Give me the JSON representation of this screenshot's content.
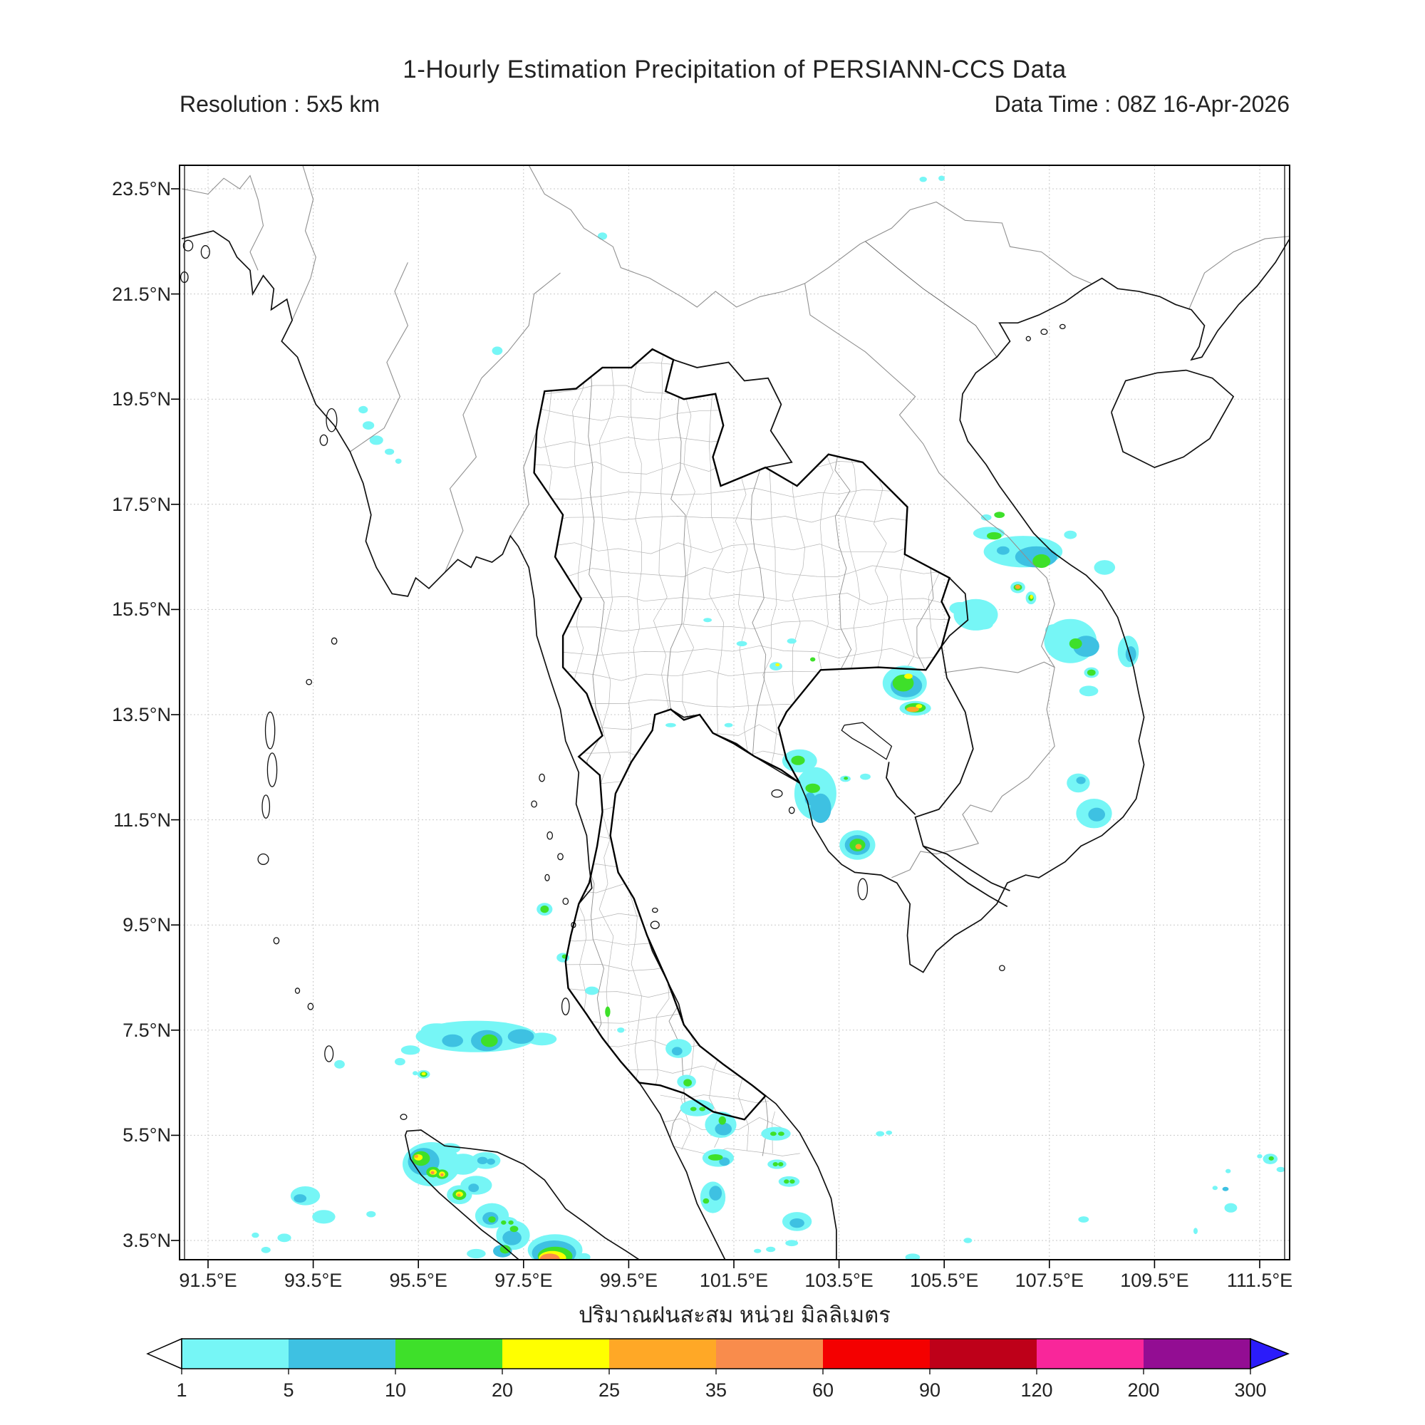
{
  "header": {
    "title": "1-Hourly Estimation Precipitation of PERSIANN-CCS Data",
    "resolution": "Resolution : 5x5 km",
    "data_time": "Data Time : 08Z 16-Apr-2026"
  },
  "caption_thai": "ปริมาณฝนสะสม หน่วย มิลลิเมตร",
  "axes": {
    "lat_labels": [
      "23.5°N",
      "21.5°N",
      "19.5°N",
      "17.5°N",
      "15.5°N",
      "13.5°N",
      "11.5°N",
      "9.5°N",
      "7.5°N",
      "5.5°N",
      "3.5°N"
    ],
    "lat_values": [
      23.5,
      21.5,
      19.5,
      17.5,
      15.5,
      13.5,
      11.5,
      9.5,
      7.5,
      5.5,
      3.5
    ],
    "lon_labels": [
      "91.5°E",
      "93.5°E",
      "95.5°E",
      "97.5°E",
      "99.5°E",
      "101.5°E",
      "103.5°E",
      "105.5°E",
      "107.5°E",
      "109.5°E",
      "111.5°E"
    ],
    "lon_values": [
      91.5,
      93.5,
      95.5,
      97.5,
      99.5,
      101.5,
      103.5,
      105.5,
      107.5,
      109.5,
      111.5
    ],
    "grid_color": "#c9c9c9"
  },
  "colorbar": {
    "tick_labels": [
      "1",
      "5",
      "10",
      "20",
      "25",
      "35",
      "60",
      "90",
      "120",
      "200",
      "300"
    ],
    "tick_values": [
      1,
      5,
      10,
      20,
      25,
      35,
      60,
      90,
      120,
      200,
      300
    ],
    "segment_colors": [
      "#76F6F6",
      "#3EC1E2",
      "#3EE02A",
      "#FFFF00",
      "#FFA826",
      "#F98C4C",
      "#F40000",
      "#BE0019",
      "#F9269A",
      "#930D93"
    ],
    "under_color": "#ffffff",
    "over_color": "#2B1CFA",
    "outline_color": "#000000"
  },
  "chart_data": {
    "type": "heatmap",
    "title": "1-Hourly Estimation Precipitation of PERSIANN-CCS Data",
    "units": "mm",
    "lon_range": [
      90.96,
      112.07
    ],
    "lat_range": [
      3.13,
      23.95
    ],
    "legend_mm_bins": [
      1,
      5,
      10,
      20,
      25,
      35,
      60,
      90,
      120,
      200,
      300
    ],
    "precip_cells": [
      [
        99.0,
        22.6,
        0.09,
        0.07,
        1
      ],
      [
        97.0,
        20.42,
        0.1,
        0.08,
        1
      ],
      [
        105.1,
        23.68,
        0.07,
        0.05,
        1
      ],
      [
        105.45,
        23.7,
        0.06,
        0.05,
        1
      ],
      [
        94.45,
        19.3,
        0.09,
        0.07,
        1
      ],
      [
        94.55,
        19.0,
        0.11,
        0.08,
        1
      ],
      [
        94.7,
        18.72,
        0.13,
        0.09,
        1
      ],
      [
        94.95,
        18.5,
        0.09,
        0.06,
        1
      ],
      [
        95.12,
        18.32,
        0.06,
        0.05,
        1
      ],
      [
        106.35,
        16.95,
        0.3,
        0.12,
        1
      ],
      [
        106.45,
        16.9,
        0.14,
        0.07,
        10
      ],
      [
        107.0,
        16.6,
        0.75,
        0.3,
        1
      ],
      [
        107.25,
        16.5,
        0.4,
        0.2,
        5
      ],
      [
        107.35,
        16.42,
        0.17,
        0.13,
        10
      ],
      [
        106.62,
        16.62,
        0.12,
        0.08,
        5
      ],
      [
        107.9,
        16.92,
        0.12,
        0.08,
        1
      ],
      [
        108.55,
        16.3,
        0.2,
        0.14,
        1
      ],
      [
        106.3,
        17.25,
        0.1,
        0.06,
        1
      ],
      [
        106.55,
        17.3,
        0.1,
        0.06,
        10
      ],
      [
        106.9,
        15.92,
        0.14,
        0.11,
        1
      ],
      [
        106.9,
        15.92,
        0.08,
        0.06,
        10
      ],
      [
        106.9,
        15.93,
        0.05,
        0.04,
        25
      ],
      [
        107.15,
        15.72,
        0.1,
        0.12,
        1
      ],
      [
        107.15,
        15.72,
        0.05,
        0.06,
        10
      ],
      [
        107.16,
        15.74,
        0.03,
        0.04,
        20
      ],
      [
        106.1,
        15.4,
        0.42,
        0.3,
        1
      ],
      [
        105.8,
        15.52,
        0.2,
        0.12,
        1
      ],
      [
        106.25,
        15.22,
        0.18,
        0.1,
        1
      ],
      [
        102.3,
        14.42,
        0.12,
        0.08,
        1
      ],
      [
        102.33,
        14.45,
        0.04,
        0.03,
        20
      ],
      [
        101.65,
        14.85,
        0.1,
        0.05,
        1
      ],
      [
        102.6,
        14.9,
        0.09,
        0.05,
        1
      ],
      [
        103.0,
        14.55,
        0.05,
        0.04,
        10
      ],
      [
        101.0,
        15.3,
        0.08,
        0.04,
        1
      ],
      [
        100.3,
        13.3,
        0.1,
        0.04,
        1
      ],
      [
        101.4,
        13.3,
        0.08,
        0.04,
        1
      ],
      [
        104.75,
        14.1,
        0.42,
        0.33,
        1
      ],
      [
        104.78,
        14.05,
        0.3,
        0.22,
        5
      ],
      [
        104.72,
        14.1,
        0.2,
        0.16,
        10
      ],
      [
        104.82,
        14.23,
        0.08,
        0.05,
        20
      ],
      [
        104.95,
        13.62,
        0.3,
        0.14,
        1
      ],
      [
        104.95,
        13.63,
        0.2,
        0.09,
        10
      ],
      [
        104.9,
        13.6,
        0.12,
        0.05,
        25
      ],
      [
        105.02,
        13.66,
        0.06,
        0.04,
        20
      ],
      [
        107.9,
        14.9,
        0.5,
        0.42,
        1
      ],
      [
        108.2,
        14.8,
        0.25,
        0.2,
        5
      ],
      [
        108.0,
        14.85,
        0.12,
        0.1,
        10
      ],
      [
        107.6,
        15.1,
        0.18,
        0.12,
        1
      ],
      [
        108.3,
        14.3,
        0.14,
        0.1,
        1
      ],
      [
        108.3,
        14.3,
        0.08,
        0.06,
        10
      ],
      [
        108.25,
        13.95,
        0.18,
        0.1,
        1
      ],
      [
        109.0,
        14.7,
        0.2,
        0.3,
        1
      ],
      [
        109.05,
        14.65,
        0.1,
        0.15,
        5
      ],
      [
        102.75,
        12.62,
        0.33,
        0.22,
        1
      ],
      [
        102.72,
        12.63,
        0.13,
        0.09,
        10
      ],
      [
        103.05,
        12.0,
        0.4,
        0.5,
        1
      ],
      [
        103.0,
        12.1,
        0.14,
        0.09,
        10
      ],
      [
        103.15,
        11.72,
        0.2,
        0.28,
        5
      ],
      [
        102.95,
        11.9,
        0.1,
        0.12,
        5
      ],
      [
        103.62,
        12.28,
        0.1,
        0.06,
        1
      ],
      [
        103.63,
        12.29,
        0.04,
        0.03,
        10
      ],
      [
        104.0,
        12.32,
        0.1,
        0.06,
        1
      ],
      [
        103.85,
        11.02,
        0.34,
        0.28,
        1
      ],
      [
        103.85,
        11.02,
        0.24,
        0.19,
        5
      ],
      [
        103.85,
        11.02,
        0.15,
        0.12,
        10
      ],
      [
        103.87,
        10.99,
        0.06,
        0.05,
        25
      ],
      [
        108.35,
        11.62,
        0.34,
        0.28,
        1
      ],
      [
        108.4,
        11.6,
        0.16,
        0.13,
        5
      ],
      [
        108.05,
        12.2,
        0.22,
        0.18,
        1
      ],
      [
        108.1,
        12.25,
        0.09,
        0.07,
        5
      ],
      [
        97.9,
        9.8,
        0.15,
        0.12,
        1
      ],
      [
        97.9,
        9.8,
        0.08,
        0.07,
        10
      ],
      [
        98.25,
        8.88,
        0.12,
        0.09,
        1
      ],
      [
        98.28,
        8.9,
        0.05,
        0.04,
        10
      ],
      [
        98.8,
        8.25,
        0.13,
        0.08,
        1
      ],
      [
        99.1,
        7.85,
        0.05,
        0.1,
        10
      ],
      [
        99.35,
        7.5,
        0.07,
        0.05,
        1
      ],
      [
        96.6,
        7.38,
        1.15,
        0.3,
        1
      ],
      [
        95.85,
        7.5,
        0.3,
        0.13,
        1
      ],
      [
        96.15,
        7.3,
        0.2,
        0.12,
        5
      ],
      [
        96.8,
        7.3,
        0.3,
        0.2,
        5
      ],
      [
        96.85,
        7.3,
        0.16,
        0.12,
        10
      ],
      [
        97.45,
        7.38,
        0.25,
        0.14,
        5
      ],
      [
        97.85,
        7.33,
        0.28,
        0.12,
        1
      ],
      [
        95.35,
        7.12,
        0.18,
        0.09,
        1
      ],
      [
        95.15,
        6.9,
        0.1,
        0.07,
        1
      ],
      [
        95.6,
        6.66,
        0.12,
        0.08,
        1
      ],
      [
        95.6,
        6.66,
        0.07,
        0.05,
        10
      ],
      [
        95.6,
        6.67,
        0.04,
        0.03,
        20
      ],
      [
        95.44,
        6.68,
        0.05,
        0.04,
        1
      ],
      [
        94.0,
        6.85,
        0.1,
        0.08,
        1
      ],
      [
        100.45,
        7.15,
        0.25,
        0.18,
        1
      ],
      [
        100.42,
        7.1,
        0.1,
        0.08,
        5
      ],
      [
        100.6,
        6.52,
        0.18,
        0.13,
        1
      ],
      [
        100.62,
        6.5,
        0.08,
        0.07,
        10
      ],
      [
        100.8,
        6.02,
        0.32,
        0.16,
        1
      ],
      [
        100.73,
        6.0,
        0.06,
        0.04,
        10
      ],
      [
        100.9,
        6.0,
        0.06,
        0.04,
        10
      ],
      [
        101.25,
        5.7,
        0.3,
        0.25,
        1
      ],
      [
        101.3,
        5.62,
        0.16,
        0.12,
        5
      ],
      [
        101.28,
        5.78,
        0.07,
        0.08,
        10
      ],
      [
        101.2,
        5.07,
        0.3,
        0.17,
        1
      ],
      [
        101.15,
        5.08,
        0.14,
        0.06,
        10
      ],
      [
        101.32,
        5.0,
        0.1,
        0.08,
        5
      ],
      [
        101.1,
        4.32,
        0.24,
        0.3,
        1
      ],
      [
        101.15,
        4.4,
        0.12,
        0.14,
        5
      ],
      [
        100.97,
        4.25,
        0.06,
        0.05,
        10
      ],
      [
        102.3,
        5.53,
        0.28,
        0.13,
        1
      ],
      [
        102.25,
        5.53,
        0.06,
        0.04,
        10
      ],
      [
        102.4,
        5.53,
        0.06,
        0.04,
        10
      ],
      [
        102.32,
        4.95,
        0.18,
        0.09,
        1
      ],
      [
        102.29,
        4.95,
        0.05,
        0.04,
        10
      ],
      [
        102.39,
        4.95,
        0.05,
        0.04,
        10
      ],
      [
        102.55,
        4.62,
        0.2,
        0.1,
        1
      ],
      [
        102.5,
        4.62,
        0.05,
        0.04,
        10
      ],
      [
        102.61,
        4.62,
        0.05,
        0.04,
        10
      ],
      [
        102.7,
        3.86,
        0.28,
        0.18,
        1
      ],
      [
        102.7,
        3.83,
        0.14,
        0.09,
        5
      ],
      [
        102.6,
        3.45,
        0.12,
        0.06,
        1
      ],
      [
        102.2,
        3.33,
        0.09,
        0.05,
        1
      ],
      [
        101.95,
        3.3,
        0.07,
        0.04,
        1
      ],
      [
        104.28,
        5.53,
        0.08,
        0.05,
        1
      ],
      [
        104.45,
        5.55,
        0.06,
        0.04,
        1
      ],
      [
        95.75,
        4.95,
        0.55,
        0.42,
        1
      ],
      [
        95.6,
        5.0,
        0.3,
        0.26,
        5
      ],
      [
        95.55,
        5.06,
        0.17,
        0.14,
        10
      ],
      [
        95.5,
        5.08,
        0.08,
        0.06,
        20
      ],
      [
        95.46,
        5.1,
        0.04,
        0.03,
        25
      ],
      [
        95.78,
        4.8,
        0.13,
        0.1,
        10
      ],
      [
        95.78,
        4.8,
        0.07,
        0.05,
        20
      ],
      [
        95.77,
        4.79,
        0.035,
        0.03,
        35
      ],
      [
        95.95,
        4.76,
        0.12,
        0.09,
        10
      ],
      [
        95.95,
        4.76,
        0.06,
        0.05,
        20
      ],
      [
        95.95,
        4.75,
        0.03,
        0.03,
        35
      ],
      [
        96.35,
        4.95,
        0.3,
        0.2,
        1
      ],
      [
        96.1,
        5.25,
        0.2,
        0.1,
        1
      ],
      [
        96.78,
        5.02,
        0.28,
        0.16,
        1
      ],
      [
        96.72,
        5.02,
        0.1,
        0.07,
        5
      ],
      [
        96.88,
        5.0,
        0.08,
        0.06,
        5
      ],
      [
        96.6,
        4.55,
        0.3,
        0.18,
        1
      ],
      [
        96.55,
        4.5,
        0.1,
        0.08,
        5
      ],
      [
        96.28,
        4.37,
        0.24,
        0.18,
        1
      ],
      [
        96.28,
        4.37,
        0.13,
        0.1,
        10
      ],
      [
        96.28,
        4.38,
        0.07,
        0.05,
        20
      ],
      [
        96.27,
        4.36,
        0.035,
        0.03,
        25
      ],
      [
        96.9,
        3.97,
        0.32,
        0.24,
        1
      ],
      [
        96.87,
        3.92,
        0.15,
        0.12,
        5
      ],
      [
        96.9,
        3.9,
        0.07,
        0.06,
        10
      ],
      [
        97.18,
        3.85,
        0.2,
        0.1,
        1
      ],
      [
        97.12,
        3.84,
        0.05,
        0.04,
        10
      ],
      [
        97.26,
        3.84,
        0.05,
        0.04,
        10
      ],
      [
        97.3,
        3.6,
        0.32,
        0.28,
        1
      ],
      [
        97.28,
        3.55,
        0.18,
        0.14,
        5
      ],
      [
        97.32,
        3.72,
        0.08,
        0.06,
        10
      ],
      [
        97.15,
        3.33,
        0.1,
        0.08,
        10
      ],
      [
        97.1,
        3.3,
        0.18,
        0.12,
        5
      ],
      [
        96.6,
        3.25,
        0.18,
        0.09,
        1
      ],
      [
        98.1,
        3.32,
        0.52,
        0.3,
        1
      ],
      [
        98.08,
        3.26,
        0.42,
        0.24,
        5
      ],
      [
        98.1,
        3.2,
        0.33,
        0.18,
        10
      ],
      [
        98.05,
        3.17,
        0.26,
        0.13,
        20
      ],
      [
        98.0,
        3.15,
        0.19,
        0.1,
        35
      ],
      [
        98.65,
        3.18,
        0.12,
        0.08,
        1
      ],
      [
        93.35,
        4.35,
        0.28,
        0.18,
        1
      ],
      [
        93.25,
        4.3,
        0.12,
        0.08,
        5
      ],
      [
        93.7,
        3.95,
        0.22,
        0.13,
        1
      ],
      [
        92.95,
        3.55,
        0.13,
        0.08,
        1
      ],
      [
        92.6,
        3.32,
        0.09,
        0.06,
        1
      ],
      [
        92.4,
        3.6,
        0.07,
        0.05,
        1
      ],
      [
        94.6,
        4.0,
        0.09,
        0.06,
        1
      ],
      [
        104.9,
        3.18,
        0.14,
        0.07,
        1
      ],
      [
        105.95,
        3.5,
        0.08,
        0.05,
        1
      ],
      [
        111.7,
        5.05,
        0.14,
        0.1,
        1
      ],
      [
        111.72,
        5.06,
        0.05,
        0.04,
        10
      ],
      [
        111.5,
        5.1,
        0.05,
        0.04,
        1
      ],
      [
        111.9,
        4.85,
        0.08,
        0.05,
        1
      ],
      [
        110.95,
        4.12,
        0.12,
        0.09,
        1
      ],
      [
        110.65,
        4.5,
        0.05,
        0.04,
        1
      ],
      [
        110.85,
        4.48,
        0.06,
        0.04,
        5
      ],
      [
        110.9,
        4.82,
        0.05,
        0.04,
        1
      ],
      [
        110.28,
        3.68,
        0.04,
        0.06,
        1
      ],
      [
        108.15,
        3.9,
        0.1,
        0.06,
        1
      ]
    ]
  }
}
